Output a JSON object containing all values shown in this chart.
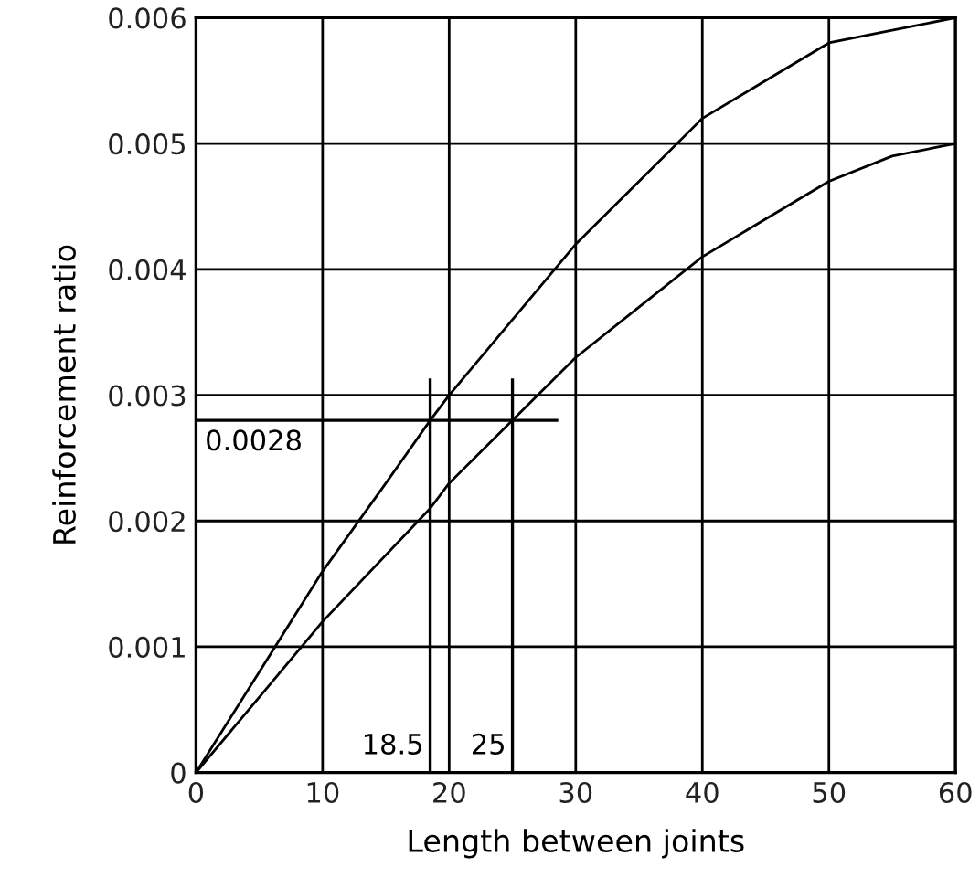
{
  "chart_data": {
    "type": "line",
    "xlabel": "Length between joints",
    "ylabel": "Reinforcement ratio",
    "series": [
      {
        "color": "#000000",
        "x": [
          0,
          5,
          10,
          15,
          18.5,
          20,
          25,
          30,
          35,
          40,
          45,
          50,
          55,
          60
        ],
        "values": [
          0,
          0.0008,
          0.0016,
          0.0023,
          0.0028,
          0.003,
          0.0036,
          0.0042,
          0.0047,
          0.0052,
          0.0055,
          0.0058,
          0.0059,
          0.006
        ]
      },
      {
        "color": "#000000",
        "x": [
          0,
          5,
          10,
          18.5,
          20,
          25,
          30,
          35,
          40,
          45,
          50,
          55,
          60
        ],
        "values": [
          0,
          0.0006,
          0.0012,
          0.0021,
          0.0023,
          0.0028,
          0.0033,
          0.0037,
          0.0041,
          0.0044,
          0.0047,
          0.0049,
          0.005
        ]
      }
    ],
    "ref_lines": [
      {
        "axis": "x",
        "value": 18.5,
        "label": "18.5",
        "color": "#000000"
      },
      {
        "axis": "x",
        "value": 25,
        "label": "25",
        "color": "#000000"
      },
      {
        "axis": "y",
        "value": 0.0028,
        "label": "0.0028",
        "color": "#000000"
      }
    ],
    "xlim": [
      0,
      60
    ],
    "xticks": [
      0,
      10,
      20,
      30,
      40,
      50,
      60
    ],
    "ylim": [
      0,
      0.006
    ],
    "yticks": [
      0,
      0.001,
      0.002,
      0.003,
      0.004,
      0.005,
      0.006
    ],
    "grid": true,
    "marker": "none",
    "line_style": "solid"
  }
}
